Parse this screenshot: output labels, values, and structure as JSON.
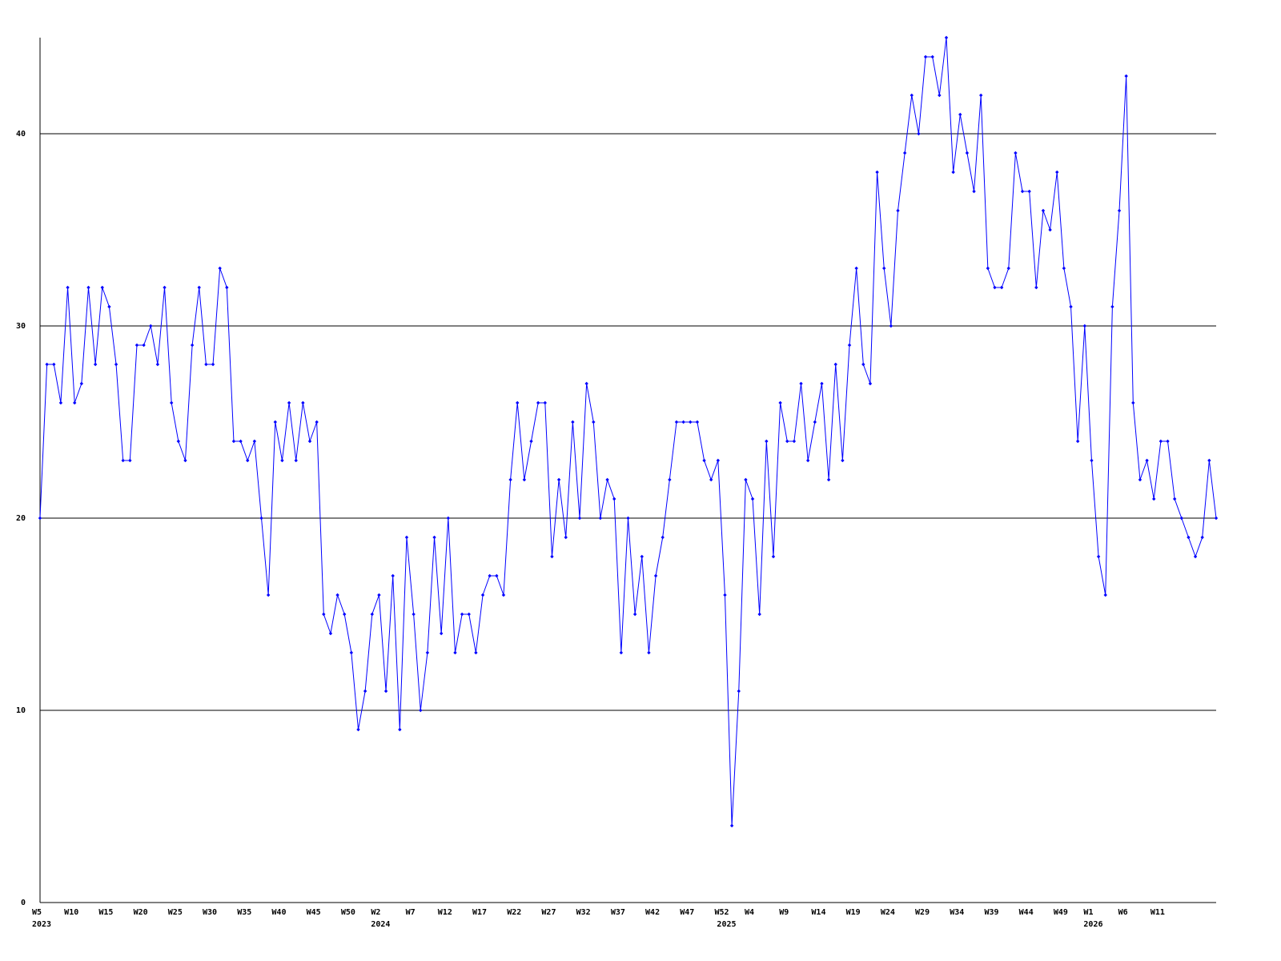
{
  "chart_data": {
    "type": "line",
    "color": "#0000ff",
    "grid": true,
    "marker": "diamond",
    "ylim": [
      0,
      45
    ],
    "yticks": [
      0,
      10,
      20,
      30,
      40
    ],
    "categories": [
      "W5",
      null,
      null,
      null,
      null,
      "W10",
      null,
      null,
      null,
      null,
      "W15",
      null,
      null,
      null,
      null,
      "W20",
      null,
      null,
      null,
      null,
      "W25",
      null,
      null,
      null,
      null,
      "W30",
      null,
      null,
      null,
      null,
      "W35",
      null,
      null,
      null,
      null,
      "W40",
      null,
      null,
      null,
      null,
      "W45",
      null,
      null,
      null,
      null,
      "W50",
      null,
      null,
      null,
      "W2",
      null,
      null,
      null,
      null,
      "W7",
      null,
      null,
      null,
      null,
      "W12",
      null,
      null,
      null,
      null,
      "W17",
      null,
      null,
      null,
      null,
      "W22",
      null,
      null,
      null,
      null,
      "W27",
      null,
      null,
      null,
      null,
      "W32",
      null,
      null,
      null,
      null,
      "W37",
      null,
      null,
      null,
      null,
      "W42",
      null,
      null,
      null,
      null,
      "W47",
      null,
      null,
      null,
      null,
      "W52",
      null,
      null,
      null,
      "W4",
      null,
      null,
      null,
      null,
      "W9",
      null,
      null,
      null,
      null,
      "W14",
      null,
      null,
      null,
      null,
      "W19",
      null,
      null,
      null,
      null,
      "W24",
      null,
      null,
      null,
      null,
      "W29",
      null,
      null,
      null,
      null,
      "W34",
      null,
      null,
      null,
      null,
      "W39",
      null,
      null,
      null,
      null,
      "W44",
      null,
      null,
      null,
      null,
      "W49",
      null,
      null,
      null,
      "W1",
      null,
      null,
      null,
      null,
      "W6",
      null,
      null,
      null,
      null,
      "W11",
      null,
      null,
      null,
      null,
      null,
      null,
      null,
      null
    ],
    "category_years": [
      "2023",
      null,
      null,
      null,
      null,
      null,
      null,
      null,
      null,
      null,
      null,
      null,
      null,
      null,
      null,
      null,
      null,
      null,
      null,
      null,
      null,
      null,
      null,
      null,
      null,
      null,
      null,
      null,
      null,
      null,
      null,
      null,
      null,
      null,
      null,
      null,
      null,
      null,
      null,
      null,
      null,
      null,
      null,
      null,
      null,
      null,
      null,
      null,
      null,
      "2024",
      null,
      null,
      null,
      null,
      null,
      null,
      null,
      null,
      null,
      null,
      null,
      null,
      null,
      null,
      null,
      null,
      null,
      null,
      null,
      null,
      null,
      null,
      null,
      null,
      null,
      null,
      null,
      null,
      null,
      null,
      null,
      null,
      null,
      null,
      null,
      null,
      null,
      null,
      null,
      null,
      null,
      null,
      null,
      null,
      null,
      null,
      null,
      null,
      null,
      "2025",
      null,
      null,
      null,
      null,
      null,
      null,
      null,
      null,
      null,
      null,
      null,
      null,
      null,
      null,
      null,
      null,
      null,
      null,
      null,
      null,
      null,
      null,
      null,
      null,
      null,
      null,
      null,
      null,
      null,
      null,
      null,
      null,
      null,
      null,
      null,
      null,
      null,
      null,
      null,
      null,
      null,
      null,
      null,
      null,
      null,
      null,
      null,
      null,
      null,
      null,
      null,
      null,
      "2026",
      null,
      null,
      null,
      null,
      null,
      null,
      null,
      null,
      null,
      null,
      null,
      null,
      null,
      null,
      null,
      null,
      null,
      null
    ],
    "values": [
      20,
      28,
      28,
      26,
      32,
      26,
      27,
      32,
      28,
      32,
      31,
      28,
      23,
      23,
      29,
      29,
      30,
      28,
      32,
      26,
      24,
      23,
      29,
      32,
      28,
      28,
      33,
      32,
      24,
      24,
      23,
      24,
      20,
      16,
      25,
      23,
      26,
      23,
      26,
      24,
      25,
      15,
      14,
      16,
      15,
      13,
      9,
      11,
      15,
      16,
      11,
      17,
      9,
      19,
      15,
      10,
      13,
      19,
      14,
      20,
      13,
      15,
      15,
      13,
      16,
      17,
      17,
      16,
      22,
      26,
      22,
      24,
      26,
      26,
      18,
      22,
      19,
      25,
      20,
      27,
      25,
      20,
      22,
      21,
      13,
      20,
      15,
      18,
      13,
      17,
      19,
      22,
      25,
      25,
      25,
      25,
      23,
      22,
      23,
      16,
      4,
      11,
      22,
      21,
      15,
      24,
      18,
      26,
      24,
      24,
      27,
      23,
      25,
      27,
      22,
      28,
      23,
      29,
      33,
      28,
      27,
      38,
      33,
      30,
      36,
      39,
      42,
      40,
      44,
      44,
      42,
      45,
      38,
      41,
      39,
      37,
      42,
      33,
      32,
      32,
      33,
      39,
      37,
      37,
      32,
      36,
      35,
      38,
      33,
      31,
      24,
      30,
      23,
      18,
      16,
      31,
      36,
      43,
      26,
      22,
      23,
      21,
      24,
      24,
      21,
      20,
      19,
      18,
      19,
      23,
      20
    ]
  }
}
